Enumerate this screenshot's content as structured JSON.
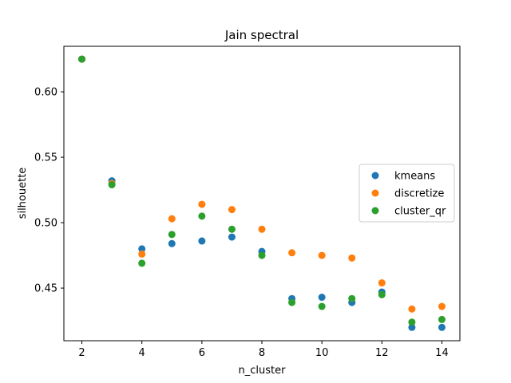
{
  "chart_data": {
    "type": "scatter",
    "title": "Jain spectral",
    "xlabel": "n_cluster",
    "ylabel": "silhouette",
    "xlim": [
      1.4,
      14.6
    ],
    "ylim": [
      0.4098,
      0.6348
    ],
    "xticks": [
      2,
      4,
      6,
      8,
      10,
      12,
      14
    ],
    "yticks": [
      0.45,
      0.5,
      0.55,
      0.6
    ],
    "ytick_labels": [
      "0.45",
      "0.50",
      "0.55",
      "0.60"
    ],
    "grid": false,
    "legend_position": "center-right",
    "x": [
      2,
      3,
      4,
      5,
      6,
      7,
      8,
      9,
      10,
      11,
      12,
      13,
      14
    ],
    "series": [
      {
        "name": "kmeans",
        "color": "#1f77b4",
        "values": [
          0.625,
          0.532,
          0.48,
          0.484,
          0.486,
          0.489,
          0.478,
          0.442,
          0.443,
          0.439,
          0.447,
          0.42,
          0.42
        ]
      },
      {
        "name": "discretize",
        "color": "#ff7f0e",
        "values": [
          0.625,
          0.53,
          0.476,
          0.503,
          0.514,
          0.51,
          0.495,
          0.477,
          0.475,
          0.473,
          0.454,
          0.434,
          0.436
        ]
      },
      {
        "name": "cluster_qr",
        "color": "#2ca02c",
        "values": [
          0.625,
          0.529,
          0.469,
          0.491,
          0.505,
          0.495,
          0.475,
          0.439,
          0.436,
          0.442,
          0.445,
          0.424,
          0.426
        ]
      }
    ]
  }
}
